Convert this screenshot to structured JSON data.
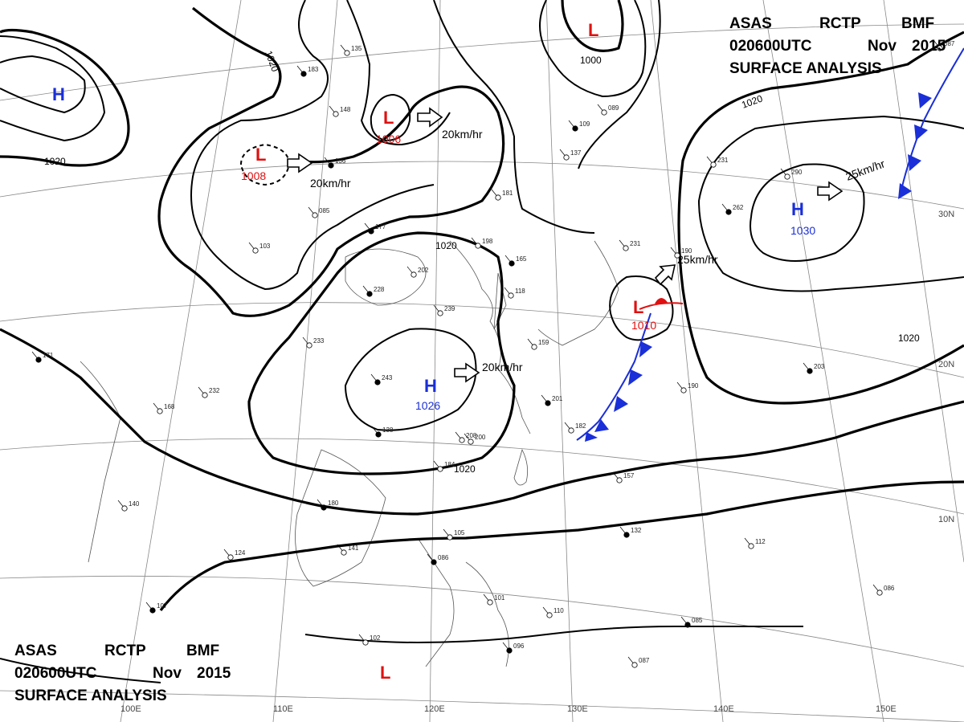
{
  "header": {
    "line1": [
      "ASAS",
      "RCTP",
      "BMF"
    ],
    "line2": [
      "020600UTC",
      "Nov",
      "2015"
    ],
    "line3": "SURFACE  ANALYSIS"
  },
  "grid_labels": {
    "longitudes": [
      "100E",
      "110E",
      "120E",
      "130E",
      "140E",
      "150E"
    ],
    "latitudes": [
      "30N",
      "20N",
      "10N"
    ]
  },
  "isobar_labels": [
    "1020",
    "1020",
    "1020",
    "1020",
    "1020",
    "1000",
    "1020"
  ],
  "pressure_centers": [
    {
      "type": "H",
      "value": ""
    },
    {
      "type": "L",
      "value": "1008"
    },
    {
      "type": "L",
      "value": "1006"
    },
    {
      "type": "L",
      "value": ""
    },
    {
      "type": "H",
      "value": "1030"
    },
    {
      "type": "H",
      "value": "1026"
    },
    {
      "type": "L",
      "value": "1010"
    },
    {
      "type": "L",
      "value": ""
    }
  ],
  "motion_labels": [
    "20km/hr",
    "20km/hr",
    "20km/hr",
    "25km/hr",
    "25km/hr"
  ],
  "station_numbers": [
    "183",
    "135",
    "148",
    "136",
    "181",
    "085",
    "177",
    "103",
    "202",
    "228",
    "239",
    "233",
    "243",
    "232",
    "208",
    "180",
    "141",
    "124",
    "107",
    "102",
    "105",
    "086",
    "101",
    "110",
    "096",
    "087",
    "157",
    "132",
    "112",
    "086",
    "085",
    "087",
    "190",
    "203",
    "190",
    "231",
    "262",
    "290",
    "089",
    "109",
    "137",
    "198",
    "165",
    "118",
    "159",
    "201",
    "182",
    "231",
    "171",
    "168",
    "140",
    "138",
    "200",
    "184"
  ]
}
